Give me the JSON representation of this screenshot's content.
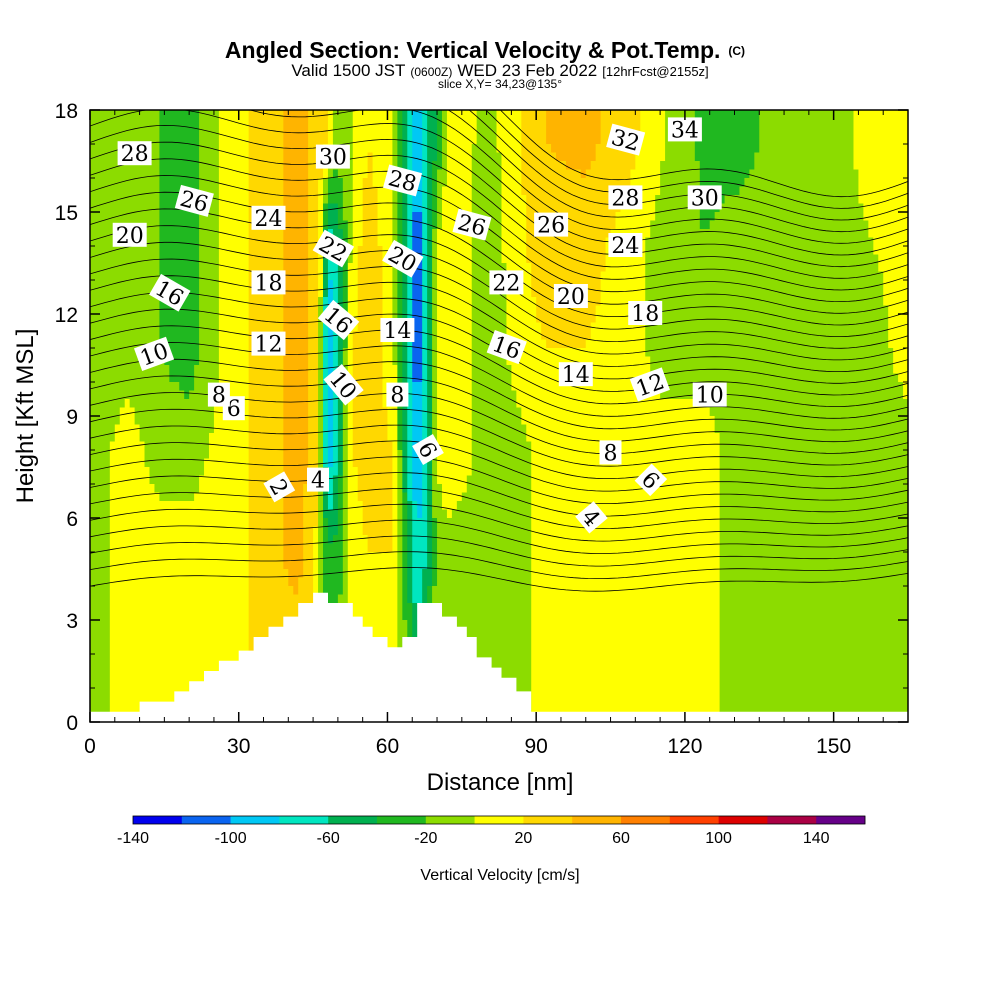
{
  "chart_data": {
    "type": "contour",
    "title": "Angled Section: Vertical Velocity & Pot.Temp.",
    "title_mark": "(C)",
    "subtitle_parts": [
      "Valid 1500 JST",
      "(0600Z)",
      "WED 23 Feb 2022",
      "[12hrFcst@2155z]"
    ],
    "subtitle2": "slice X,Y= 34,23@135°",
    "xlabel": "Distance [nm]",
    "ylabel": "Height [Kft MSL]",
    "xlim": [
      0,
      165
    ],
    "ylim": [
      0,
      18
    ],
    "x_ticks": [
      "0",
      "30",
      "60",
      "90",
      "120",
      "150"
    ],
    "x_tick_values": [
      0,
      30,
      60,
      90,
      120,
      150
    ],
    "y_ticks": [
      "0",
      "3",
      "6",
      "9",
      "12",
      "15",
      "18"
    ],
    "y_tick_values": [
      0,
      3,
      6,
      9,
      12,
      15,
      18
    ],
    "grid": false,
    "colorbar": {
      "label": "Vertical Velocity [cm/s]",
      "tick_labels": [
        "-140",
        "-100",
        "-60",
        "-20",
        "20",
        "60",
        "100",
        "140"
      ],
      "tick_values": [
        -140,
        -100,
        -60,
        -20,
        20,
        60,
        100,
        140
      ],
      "levels": [
        -140,
        -120,
        -100,
        -80,
        -60,
        -40,
        -20,
        0,
        20,
        40,
        60,
        80,
        100,
        120,
        140,
        160
      ],
      "colors": [
        "#0000ee",
        "#0a64f0",
        "#00c8f5",
        "#00e6c0",
        "#00b050",
        "#20b820",
        "#8cdc00",
        "#ffff00",
        "#ffd800",
        "#ffb400",
        "#ff8000",
        "#ff4000",
        "#dd0000",
        "#aa0044",
        "#660088"
      ]
    },
    "columns_nm": [
      0,
      8,
      14,
      20,
      28,
      36,
      42,
      46,
      48,
      50,
      53,
      56,
      61,
      64,
      66,
      68,
      70,
      72,
      75,
      80,
      86,
      92,
      100,
      108,
      116,
      124,
      130,
      140,
      150,
      158,
      165
    ],
    "vertical_velocity_cm_s": [
      {
        "height_kft": 17,
        "values": [
          -10,
          -10,
          -20,
          -30,
          10,
          30,
          50,
          30,
          20,
          -10,
          0,
          20,
          10,
          -60,
          -100,
          -60,
          -40,
          0,
          10,
          -10,
          15,
          40,
          45,
          30,
          0,
          -25,
          -30,
          -10,
          -10,
          10,
          10
        ]
      },
      {
        "height_kft": 14,
        "values": [
          -10,
          -10,
          -20,
          -30,
          10,
          30,
          50,
          30,
          -80,
          -60,
          10,
          30,
          10,
          -60,
          -120,
          -60,
          0,
          20,
          10,
          -20,
          15,
          30,
          30,
          10,
          -10,
          -20,
          -10,
          -10,
          -10,
          0,
          10
        ]
      },
      {
        "height_kft": 11,
        "values": [
          -10,
          -10,
          -20,
          -30,
          10,
          30,
          50,
          30,
          -100,
          -60,
          20,
          30,
          10,
          -60,
          -120,
          -60,
          0,
          20,
          10,
          -20,
          10,
          20,
          20,
          10,
          -10,
          -10,
          -10,
          -10,
          -10,
          -10,
          10
        ]
      },
      {
        "height_kft": 8,
        "values": [
          -10,
          10,
          -10,
          -10,
          10,
          30,
          50,
          30,
          -100,
          -60,
          20,
          30,
          20,
          -60,
          -100,
          -60,
          0,
          20,
          10,
          -10,
          -10,
          10,
          0,
          10,
          10,
          10,
          -10,
          -10,
          -10,
          -10,
          -10
        ]
      },
      {
        "height_kft": 5,
        "values": [
          -10,
          10,
          10,
          10,
          10,
          30,
          50,
          10,
          -40,
          -30,
          10,
          20,
          20,
          -40,
          -80,
          -60,
          -10,
          -10,
          -10,
          -10,
          -10,
          10,
          10,
          10,
          10,
          10,
          -10,
          -10,
          -10,
          -10,
          -10
        ]
      },
      {
        "height_kft": 2,
        "values": [
          -10,
          10,
          10,
          10,
          10,
          30,
          30,
          10,
          -20,
          -20,
          10,
          20,
          10,
          -20,
          -60,
          -30,
          -10,
          -10,
          -10,
          -10,
          -10,
          10,
          10,
          10,
          10,
          10,
          -10,
          -10,
          -10,
          -10,
          -10
        ]
      }
    ],
    "potential_temperature_labels": [
      {
        "text": "2",
        "x": 38,
        "y": 6.9,
        "angle": 60
      },
      {
        "text": "4",
        "x": 46,
        "y": 7.1,
        "angle": 0
      },
      {
        "text": "4",
        "x": 101,
        "y": 6.0,
        "angle": 50
      },
      {
        "text": "6",
        "x": 29,
        "y": 9.2,
        "angle": 0
      },
      {
        "text": "6",
        "x": 68,
        "y": 8.0,
        "angle": 60
      },
      {
        "text": "6",
        "x": 113,
        "y": 7.1,
        "angle": 45
      },
      {
        "text": "8",
        "x": 26,
        "y": 9.6,
        "angle": 0
      },
      {
        "text": "8",
        "x": 62,
        "y": 9.6,
        "angle": 0
      },
      {
        "text": "8",
        "x": 105,
        "y": 7.9,
        "angle": 0
      },
      {
        "text": "10",
        "x": 13,
        "y": 10.8,
        "angle": -20
      },
      {
        "text": "10",
        "x": 51,
        "y": 9.9,
        "angle": 50
      },
      {
        "text": "10",
        "x": 125,
        "y": 9.6,
        "angle": 0
      },
      {
        "text": "12",
        "x": 36,
        "y": 11.1,
        "angle": 0
      },
      {
        "text": "12",
        "x": 113,
        "y": 9.9,
        "angle": -20
      },
      {
        "text": "14",
        "x": 62,
        "y": 11.5,
        "angle": 0
      },
      {
        "text": "14",
        "x": 98,
        "y": 10.2,
        "angle": 0
      },
      {
        "text": "16",
        "x": 16,
        "y": 12.6,
        "angle": 30
      },
      {
        "text": "16",
        "x": 50,
        "y": 11.8,
        "angle": 40
      },
      {
        "text": "16",
        "x": 84,
        "y": 11.0,
        "angle": 20
      },
      {
        "text": "18",
        "x": 36,
        "y": 12.9,
        "angle": 0
      },
      {
        "text": "18",
        "x": 112,
        "y": 12.0,
        "angle": 0
      },
      {
        "text": "20",
        "x": 8,
        "y": 14.3,
        "angle": 0
      },
      {
        "text": "20",
        "x": 63,
        "y": 13.6,
        "angle": 30
      },
      {
        "text": "20",
        "x": 97,
        "y": 12.5,
        "angle": 0
      },
      {
        "text": "22",
        "x": 49,
        "y": 13.9,
        "angle": 30
      },
      {
        "text": "22",
        "x": 84,
        "y": 12.9,
        "angle": 0
      },
      {
        "text": "24",
        "x": 36,
        "y": 14.8,
        "angle": 0
      },
      {
        "text": "24",
        "x": 108,
        "y": 14.0,
        "angle": 0
      },
      {
        "text": "26",
        "x": 21,
        "y": 15.3,
        "angle": 15
      },
      {
        "text": "26",
        "x": 77,
        "y": 14.6,
        "angle": 15
      },
      {
        "text": "26",
        "x": 93,
        "y": 14.6,
        "angle": 0
      },
      {
        "text": "28",
        "x": 9,
        "y": 16.7,
        "angle": 0
      },
      {
        "text": "28",
        "x": 63,
        "y": 15.9,
        "angle": 15
      },
      {
        "text": "28",
        "x": 108,
        "y": 15.4,
        "angle": 0
      },
      {
        "text": "30",
        "x": 49,
        "y": 16.6,
        "angle": 0
      },
      {
        "text": "30",
        "x": 124,
        "y": 15.4,
        "angle": 0
      },
      {
        "text": "32",
        "x": 108,
        "y": 17.1,
        "angle": 15
      },
      {
        "text": "34",
        "x": 120,
        "y": 17.4,
        "angle": 0
      }
    ],
    "terrain_profile": {
      "x": [
        0,
        10,
        10,
        17,
        17,
        20,
        20,
        23,
        23,
        26,
        26,
        30,
        30,
        33,
        33,
        36,
        36,
        39,
        39,
        42,
        42,
        45,
        45,
        48,
        48,
        53,
        53,
        55,
        55,
        57,
        57,
        60,
        60,
        63,
        63,
        66,
        66,
        71,
        71,
        74,
        74,
        76,
        76,
        78,
        78,
        81,
        81,
        83,
        83,
        86,
        86,
        89,
        89,
        165
      ],
      "y": [
        0.3,
        0.3,
        0.6,
        0.6,
        0.9,
        0.9,
        1.2,
        1.2,
        1.5,
        1.5,
        1.8,
        1.8,
        2.1,
        2.1,
        2.5,
        2.5,
        2.8,
        2.8,
        3.1,
        3.1,
        3.5,
        3.5,
        3.8,
        3.8,
        3.5,
        3.5,
        3.1,
        3.1,
        2.8,
        2.8,
        2.5,
        2.5,
        2.2,
        2.2,
        2.5,
        2.5,
        3.5,
        3.5,
        3.1,
        3.1,
        2.8,
        2.8,
        2.5,
        2.5,
        1.9,
        1.9,
        1.6,
        1.6,
        1.3,
        1.3,
        0.9,
        0.9,
        0.3,
        0.3
      ]
    }
  }
}
